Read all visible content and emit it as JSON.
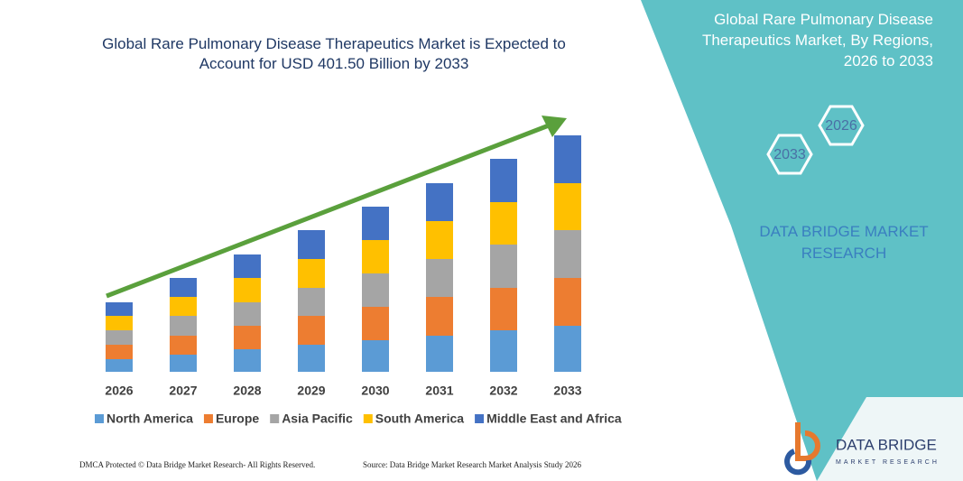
{
  "chart_data": {
    "type": "bar",
    "stacked": true,
    "title": "Global Rare Pulmonary Disease Therapeutics Market is Expected to Account for USD 401.50 Billion by 2033",
    "categories": [
      "2026",
      "2027",
      "2028",
      "2029",
      "2030",
      "2031",
      "2032",
      "2033"
    ],
    "series": [
      {
        "name": "North America",
        "color": "#5b9bd5",
        "values": [
          14,
          19,
          25,
          30,
          35,
          40,
          46,
          51
        ]
      },
      {
        "name": "Europe",
        "color": "#ed7d31",
        "values": [
          16,
          21,
          26,
          32,
          37,
          43,
          47,
          53
        ]
      },
      {
        "name": "Asia Pacific",
        "color": "#a5a5a5",
        "values": [
          16,
          22,
          26,
          31,
          37,
          42,
          48,
          53
        ]
      },
      {
        "name": "South America",
        "color": "#ffc000",
        "values": [
          16,
          21,
          27,
          32,
          37,
          42,
          47,
          52
        ]
      },
      {
        "name": "Middle East and Africa",
        "color": "#4472c4",
        "values": [
          15,
          21,
          26,
          32,
          37,
          42,
          48,
          53
        ]
      }
    ]
  },
  "panel": {
    "title": "Global Rare Pulmonary Disease Therapeutics Market, By Regions, 2026 to 2033",
    "hexagons": [
      "2026",
      "2033"
    ],
    "brand": "DATA BRIDGE MARKET RESEARCH"
  },
  "logo": {
    "name": "DATA BRIDGE",
    "tagline": "MARKET RESEARCH"
  },
  "footer": {
    "left": "DMCA Protected © Data Bridge Market Research- All Rights Reserved.",
    "right": "Source: Data Bridge Market Research Market Analysis Study 2026"
  }
}
